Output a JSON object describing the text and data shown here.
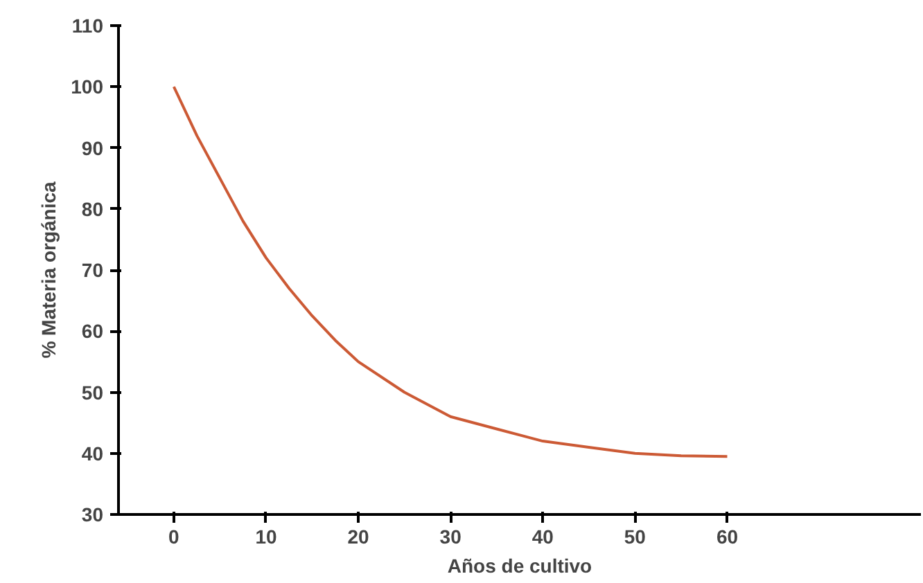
{
  "chart_data": {
    "type": "line",
    "xlabel": "Años de cultivo",
    "ylabel": "% Materia orgánica",
    "x": [
      0,
      2.5,
      5,
      7.5,
      10,
      12.5,
      15,
      17.5,
      20,
      25,
      30,
      35,
      40,
      45,
      50,
      55,
      60
    ],
    "series": [
      {
        "color": "#cc5a35",
        "values": [
          100,
          92,
          85,
          78,
          72,
          67,
          62.5,
          58.5,
          55,
          50,
          46,
          44,
          42,
          41,
          40,
          39.6,
          39.5
        ]
      }
    ],
    "xlim": [
      -6,
      81
    ],
    "ylim": [
      30,
      110
    ],
    "xticks": [
      0,
      10,
      20,
      30,
      40,
      50,
      60
    ],
    "yticks": [
      30,
      40,
      50,
      60,
      70,
      80,
      90,
      100,
      110
    ],
    "marker": "none",
    "line_style": "solid"
  }
}
